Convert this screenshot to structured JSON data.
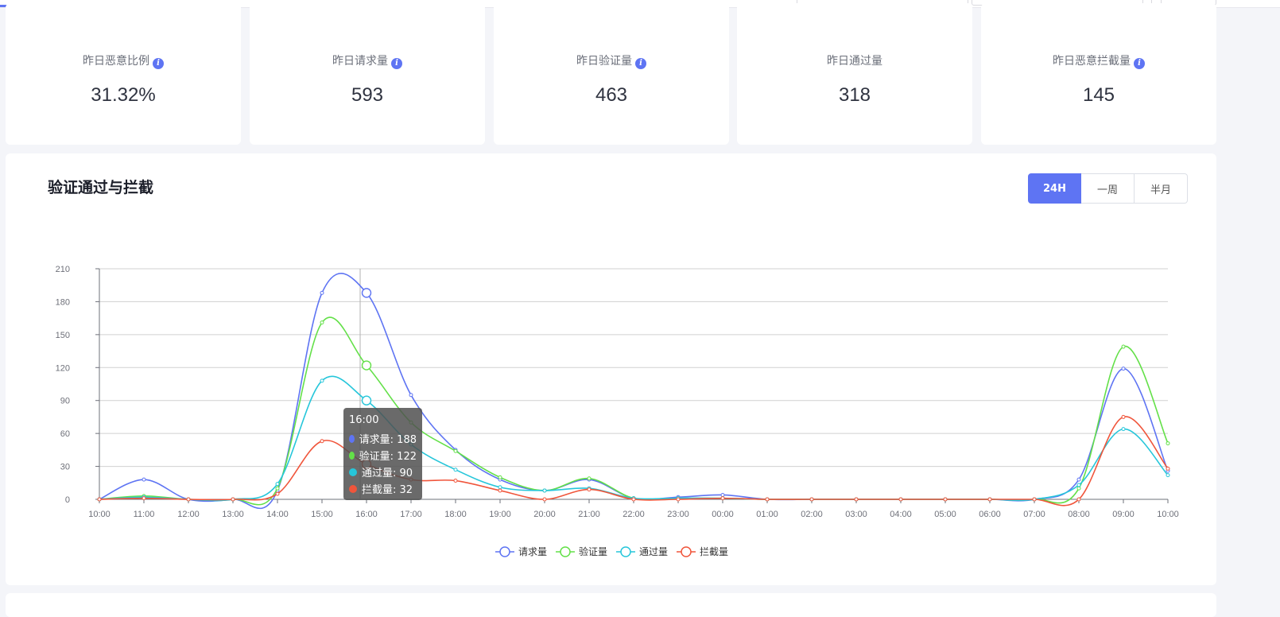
{
  "stats": [
    {
      "label": "昨日恶意比例",
      "value": "31.32%",
      "has_info": true
    },
    {
      "label": "昨日请求量",
      "value": "593",
      "has_info": true
    },
    {
      "label": "昨日验证量",
      "value": "463",
      "has_info": true
    },
    {
      "label": "昨日通过量",
      "value": "318",
      "has_info": false
    },
    {
      "label": "昨日恶意拦截量",
      "value": "145",
      "has_info": true
    }
  ],
  "info_icon_glyph": "i",
  "panel": {
    "title": "验证通过与拦截",
    "ranges": [
      "24H",
      "一周",
      "半月"
    ],
    "active_range": "24H"
  },
  "tooltip": {
    "title": "16:00",
    "rows": [
      {
        "label": "请求量: 188",
        "color": "#5e74f3"
      },
      {
        "label": "验证量: 122",
        "color": "#63e048"
      },
      {
        "label": "通过量: 90",
        "color": "#26c6da"
      },
      {
        "label": "拦截量: 32",
        "color": "#f0553b"
      }
    ]
  },
  "chart_data": {
    "type": "line",
    "x": [
      "10:00",
      "11:00",
      "12:00",
      "13:00",
      "14:00",
      "15:00",
      "16:00",
      "17:00",
      "18:00",
      "19:00",
      "20:00",
      "21:00",
      "22:00",
      "23:00",
      "00:00",
      "01:00",
      "02:00",
      "03:00",
      "04:00",
      "05:00",
      "06:00",
      "07:00",
      "08:00",
      "09:00",
      "10:00"
    ],
    "yticks": [
      0,
      30,
      60,
      90,
      120,
      150,
      180,
      210
    ],
    "ylim": [
      0,
      210
    ],
    "grid": true,
    "legend_position": "bottom-center",
    "hover_index": 6,
    "series": [
      {
        "name": "请求量",
        "color": "#5e74f3",
        "values": [
          0,
          18,
          0,
          0,
          8,
          188,
          188,
          95,
          45,
          18,
          8,
          18,
          1,
          2,
          4,
          0,
          0,
          0,
          0,
          0,
          0,
          0,
          18,
          119,
          26
        ]
      },
      {
        "name": "验证量",
        "color": "#63e048",
        "values": [
          0,
          3,
          0,
          0,
          10,
          161,
          122,
          70,
          44,
          20,
          8,
          19,
          1,
          1,
          1,
          0,
          0,
          0,
          0,
          0,
          0,
          0,
          10,
          139,
          51
        ]
      },
      {
        "name": "通过量",
        "color": "#26c6da",
        "values": [
          0,
          2,
          0,
          0,
          14,
          108,
          90,
          50,
          27,
          11,
          8,
          10,
          1,
          1,
          1,
          0,
          0,
          0,
          0,
          0,
          0,
          0,
          13,
          64,
          22
        ]
      },
      {
        "name": "拦截量",
        "color": "#f0553b",
        "values": [
          0,
          1,
          0,
          0,
          5,
          53,
          32,
          18,
          17,
          8,
          0,
          9,
          0,
          0,
          1,
          0,
          0,
          0,
          0,
          0,
          0,
          0,
          0,
          75,
          28
        ]
      }
    ]
  }
}
